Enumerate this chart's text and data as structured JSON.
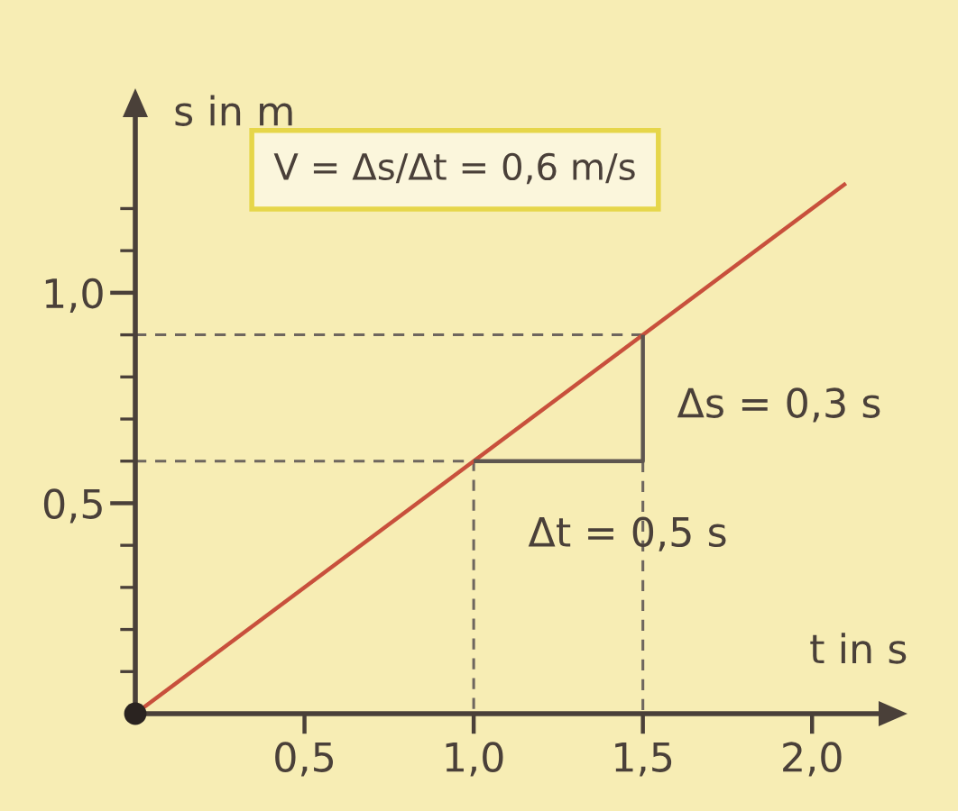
{
  "chart_data": {
    "type": "line",
    "xlabel": "t in s",
    "ylabel": "s in m",
    "annotations": [
      "V = Δs/Δt = 0,6 m/s",
      "Δs = 0,3 s",
      "Δt = 0,5 s"
    ],
    "series": [
      {
        "x": [
          0,
          2.1
        ],
        "values": [
          0,
          1.26
        ],
        "color": "#c8503c"
      },
      {
        "x": [
          0,
          1.0,
          1.0
        ],
        "values": [
          0.6,
          0.6,
          0
        ],
        "color": "#6e665e",
        "line_style": "dashed"
      },
      {
        "x": [
          0,
          1.5
        ],
        "values": [
          0.9,
          0.9
        ],
        "color": "#6e665e",
        "line_style": "dashed"
      },
      {
        "x": [
          1.5,
          1.5
        ],
        "values": [
          0.6,
          0
        ],
        "color": "#6e665e",
        "line_style": "dashed"
      },
      {
        "x": [
          1.0,
          1.5,
          1.5
        ],
        "values": [
          0.6,
          0.6,
          0.9
        ],
        "color": "#5e5650"
      },
      {
        "type": "scatter",
        "x": [
          0
        ],
        "values": [
          0
        ],
        "color": "#2a2320",
        "marker": "circle"
      }
    ],
    "xlim": [
      0,
      2.25
    ],
    "ylim": [
      0,
      1.46
    ],
    "xticks": [
      {
        "value": 0.5,
        "label": "0,5"
      },
      {
        "value": 1.0,
        "label": "1,0"
      },
      {
        "value": 1.5,
        "label": "1,5"
      },
      {
        "value": 2.0,
        "label": "2,0"
      }
    ],
    "yticks": [
      {
        "value": 0.1,
        "label": null
      },
      {
        "value": 0.2,
        "label": null
      },
      {
        "value": 0.3,
        "label": null
      },
      {
        "value": 0.4,
        "label": null
      },
      {
        "value": 0.5,
        "label": "0,5"
      },
      {
        "value": 0.6,
        "label": null
      },
      {
        "value": 0.7,
        "label": null
      },
      {
        "value": 0.8,
        "label": null
      },
      {
        "value": 0.9,
        "label": null
      },
      {
        "value": 1.0,
        "label": "1,0"
      },
      {
        "value": 1.1,
        "label": null
      },
      {
        "value": 1.2,
        "label": null
      }
    ]
  }
}
